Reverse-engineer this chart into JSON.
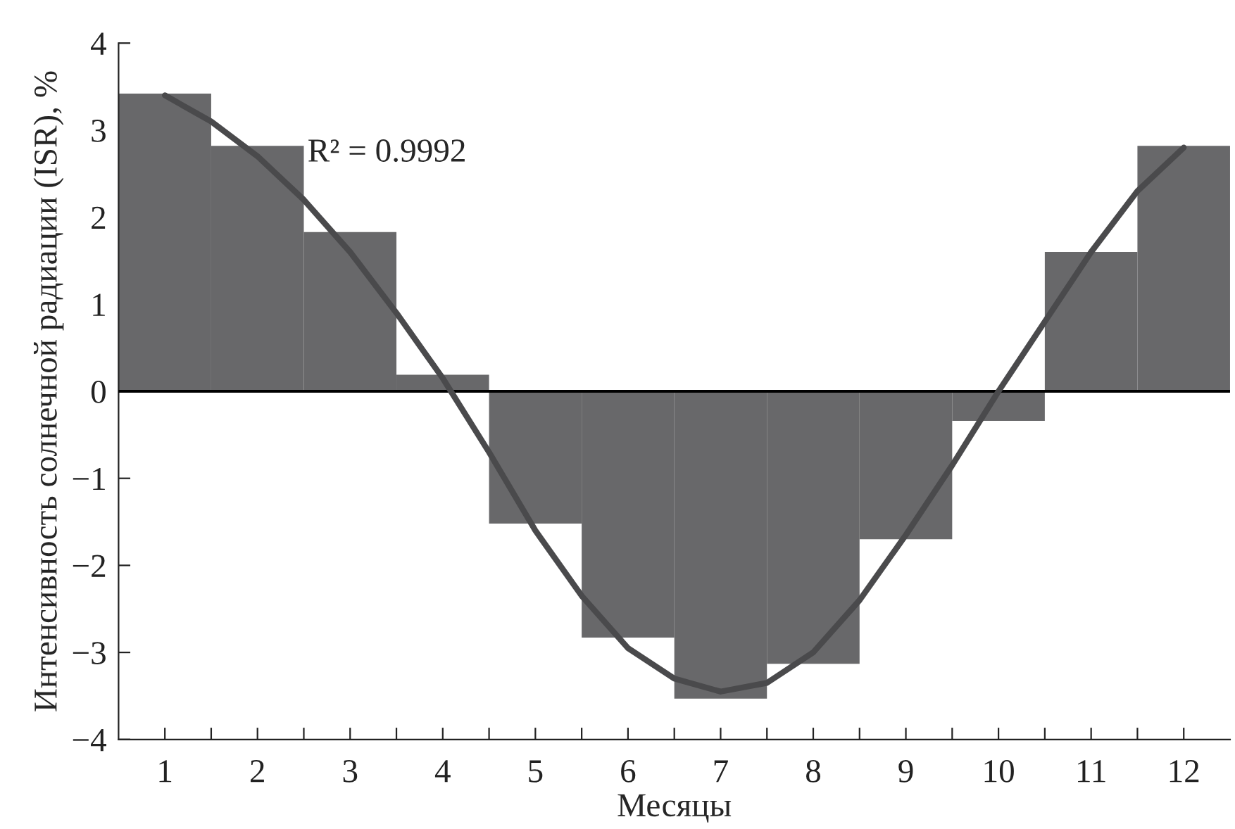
{
  "chart_data": {
    "type": "bar",
    "xlabel": "Месяцы",
    "ylabel": "Интенсивность солнечной радиации (ISR), %",
    "x": [
      1,
      2,
      3,
      4,
      5,
      6,
      7,
      8,
      9,
      10,
      11,
      12
    ],
    "series": [
      {
        "color": "#68686a",
        "values": [
          3.42,
          2.82,
          1.83,
          0.19,
          -1.52,
          -2.83,
          -3.53,
          -3.13,
          -1.7,
          -0.34,
          1.6,
          2.82
        ]
      },
      {
        "type": "line",
        "color": "#4a4a4c",
        "x": [
          1,
          1.5,
          2,
          2.5,
          3,
          3.5,
          4,
          4.5,
          5,
          5.5,
          6,
          6.5,
          7,
          7.5,
          8,
          8.5,
          9,
          9.5,
          10,
          10.5,
          11,
          11.5,
          12
        ],
        "values": [
          3.4,
          3.1,
          2.7,
          2.2,
          1.6,
          0.9,
          0.15,
          -0.7,
          -1.6,
          -2.35,
          -2.95,
          -3.3,
          -3.45,
          -3.35,
          -3.0,
          -2.4,
          -1.65,
          -0.85,
          0.0,
          0.8,
          1.6,
          2.3,
          2.8
        ]
      }
    ],
    "xlim": [
      0.5,
      12.5
    ],
    "xticks": [
      1,
      {
        "value": 1.5,
        "label": null
      },
      2,
      {
        "value": 2.5,
        "label": null
      },
      3,
      {
        "value": 3.5,
        "label": null
      },
      4,
      {
        "value": 4.5,
        "label": null
      },
      5,
      {
        "value": 5.5,
        "label": null
      },
      6,
      {
        "value": 6.5,
        "label": null
      },
      7,
      {
        "value": 7.5,
        "label": null
      },
      8,
      {
        "value": 8.5,
        "label": null
      },
      9,
      {
        "value": 9.5,
        "label": null
      },
      10,
      {
        "value": 10.5,
        "label": null
      },
      11,
      {
        "value": 11.5,
        "label": null
      },
      12
    ],
    "ylim": [
      -4,
      4
    ],
    "yticks": [
      {
        "value": -4,
        "label": "−4"
      },
      {
        "value": -3,
        "label": "−3"
      },
      {
        "value": -2,
        "label": "−2"
      },
      {
        "value": -1,
        "label": "−1"
      },
      0,
      1,
      2,
      3,
      4
    ],
    "ref_lines": [
      {
        "axis": "y",
        "value": 0,
        "color": "#000000"
      }
    ],
    "annotations": [
      "R² = 0.9992"
    ],
    "grid": false,
    "legend": false
  }
}
